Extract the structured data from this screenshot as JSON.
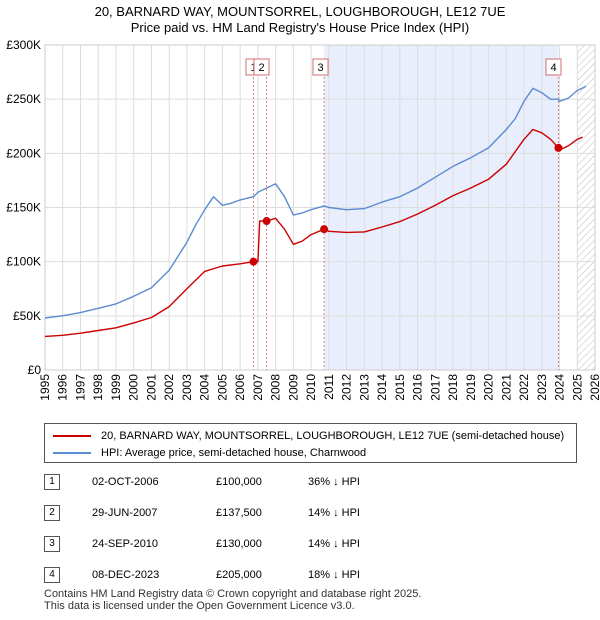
{
  "title_line1": "20, BARNARD WAY, MOUNTSORREL, LOUGHBOROUGH, LE12 7UE",
  "title_line2": "Price paid vs. HM Land Registry's House Price Index (HPI)",
  "colors": {
    "property": "#cc0000",
    "hpi": "#5b8bd0",
    "shade": "#e8eefb",
    "grid": "#dddddd"
  },
  "chart_data": {
    "type": "line",
    "xlim": [
      1995,
      2026
    ],
    "ylim": [
      0,
      300000
    ],
    "y_ticks": [
      0,
      50000,
      100000,
      150000,
      200000,
      250000,
      300000
    ],
    "y_tick_labels": [
      "£0",
      "£50K",
      "£100K",
      "£150K",
      "£200K",
      "£250K",
      "£300K"
    ],
    "x_ticks": [
      1995,
      1996,
      1997,
      1998,
      1999,
      2000,
      2001,
      2002,
      2003,
      2004,
      2005,
      2006,
      2007,
      2008,
      2009,
      2010,
      2011,
      2012,
      2013,
      2014,
      2015,
      2016,
      2017,
      2018,
      2019,
      2020,
      2021,
      2022,
      2023,
      2024,
      2025,
      2026
    ],
    "x_tick_labels": [
      "1995",
      "1996",
      "1997",
      "1998",
      "1999",
      "2000",
      "2001",
      "2002",
      "2003",
      "2004",
      "2005",
      "2006",
      "2007",
      "2008",
      "2009",
      "2010",
      "2011",
      "2012",
      "2013",
      "2014",
      "2015",
      "2016",
      "2017",
      "2018",
      "2019",
      "2020",
      "2021",
      "2022",
      "2023",
      "2024",
      "2025",
      "2026"
    ],
    "shaded_range": [
      2010.73,
      2023.94
    ],
    "hatched_from": 2025.0,
    "series": [
      {
        "name": "HPI: Average price, semi-detached house, Charnwood",
        "color": "#5b8bd0",
        "points": [
          [
            1995.0,
            48000
          ],
          [
            1996.0,
            50000
          ],
          [
            1997.0,
            53000
          ],
          [
            1998.0,
            57000
          ],
          [
            1999.0,
            61000
          ],
          [
            2000.0,
            68000
          ],
          [
            2001.0,
            76000
          ],
          [
            2002.0,
            92000
          ],
          [
            2003.0,
            118000
          ],
          [
            2003.5,
            134000
          ],
          [
            2004.0,
            148000
          ],
          [
            2004.5,
            160000
          ],
          [
            2005.0,
            152000
          ],
          [
            2005.5,
            154000
          ],
          [
            2006.0,
            157000
          ],
          [
            2006.75,
            160000
          ],
          [
            2007.0,
            164000
          ],
          [
            2007.5,
            168000
          ],
          [
            2008.0,
            172000
          ],
          [
            2008.5,
            160000
          ],
          [
            2009.0,
            143000
          ],
          [
            2009.5,
            145000
          ],
          [
            2010.0,
            148000
          ],
          [
            2010.73,
            151500
          ],
          [
            2011.0,
            150000
          ],
          [
            2012.0,
            148000
          ],
          [
            2013.0,
            149000
          ],
          [
            2014.0,
            155000
          ],
          [
            2015.0,
            160000
          ],
          [
            2016.0,
            168000
          ],
          [
            2017.0,
            178000
          ],
          [
            2018.0,
            188000
          ],
          [
            2019.0,
            196000
          ],
          [
            2020.0,
            205000
          ],
          [
            2021.0,
            222000
          ],
          [
            2021.5,
            232000
          ],
          [
            2022.0,
            248000
          ],
          [
            2022.5,
            260000
          ],
          [
            2023.0,
            256000
          ],
          [
            2023.5,
            250000
          ],
          [
            2023.94,
            250000
          ],
          [
            2024.0,
            248000
          ],
          [
            2024.5,
            251000
          ],
          [
            2025.0,
            258000
          ],
          [
            2025.5,
            262000
          ]
        ]
      },
      {
        "name": "20, BARNARD WAY, MOUNTSORREL, LOUGHBOROUGH, LE12 7UE (semi-detached house)",
        "color": "#cc0000",
        "points": [
          [
            1995.0,
            31000
          ],
          [
            1996.0,
            32000
          ],
          [
            1997.0,
            34000
          ],
          [
            1998.0,
            36500
          ],
          [
            1999.0,
            39000
          ],
          [
            2000.0,
            43500
          ],
          [
            2001.0,
            48500
          ],
          [
            2002.0,
            58500
          ],
          [
            2003.0,
            75000
          ],
          [
            2004.0,
            91000
          ],
          [
            2005.0,
            96000
          ],
          [
            2006.0,
            98000
          ],
          [
            2006.75,
            100000
          ],
          [
            2007.0,
            100000
          ],
          [
            2007.1,
            137500
          ],
          [
            2007.49,
            137500
          ],
          [
            2008.0,
            140000
          ],
          [
            2008.5,
            130000
          ],
          [
            2009.0,
            116000
          ],
          [
            2009.5,
            119000
          ],
          [
            2010.0,
            125000
          ],
          [
            2010.73,
            130000
          ],
          [
            2011.0,
            128000
          ],
          [
            2012.0,
            127000
          ],
          [
            2013.0,
            127500
          ],
          [
            2014.0,
            132000
          ],
          [
            2015.0,
            137000
          ],
          [
            2016.0,
            144000
          ],
          [
            2017.0,
            152000
          ],
          [
            2018.0,
            161000
          ],
          [
            2019.0,
            168000
          ],
          [
            2020.0,
            176000
          ],
          [
            2021.0,
            190000
          ],
          [
            2022.0,
            213000
          ],
          [
            2022.5,
            222000
          ],
          [
            2023.0,
            219000
          ],
          [
            2023.5,
            213000
          ],
          [
            2023.94,
            205000
          ],
          [
            2024.0,
            203000
          ],
          [
            2024.5,
            207000
          ],
          [
            2025.0,
            213000
          ],
          [
            2025.3,
            215000
          ]
        ]
      }
    ],
    "sales": [
      {
        "label": "1",
        "x": 2006.75,
        "y": 100000
      },
      {
        "label": "2",
        "x": 2007.49,
        "y": 137500
      },
      {
        "label": "3",
        "x": 2010.73,
        "y": 130000
      },
      {
        "label": "4",
        "x": 2023.94,
        "y": 205000
      }
    ]
  },
  "legend": {
    "property_label": "20, BARNARD WAY, MOUNTSORREL, LOUGHBOROUGH, LE12 7UE (semi-detached house)",
    "hpi_label": "HPI: Average price, semi-detached house, Charnwood"
  },
  "sales_table": [
    {
      "num": "1",
      "date": "02-OCT-2006",
      "price": "£100,000",
      "hpi": "36% ↓ HPI"
    },
    {
      "num": "2",
      "date": "29-JUN-2007",
      "price": "£137,500",
      "hpi": "14% ↓ HPI"
    },
    {
      "num": "3",
      "date": "24-SEP-2010",
      "price": "£130,000",
      "hpi": "14% ↓ HPI"
    },
    {
      "num": "4",
      "date": "08-DEC-2023",
      "price": "£205,000",
      "hpi": "18% ↓ HPI"
    }
  ],
  "footer_line1": "Contains HM Land Registry data © Crown copyright and database right 2025.",
  "footer_line2": "This data is licensed under the Open Government Licence v3.0."
}
